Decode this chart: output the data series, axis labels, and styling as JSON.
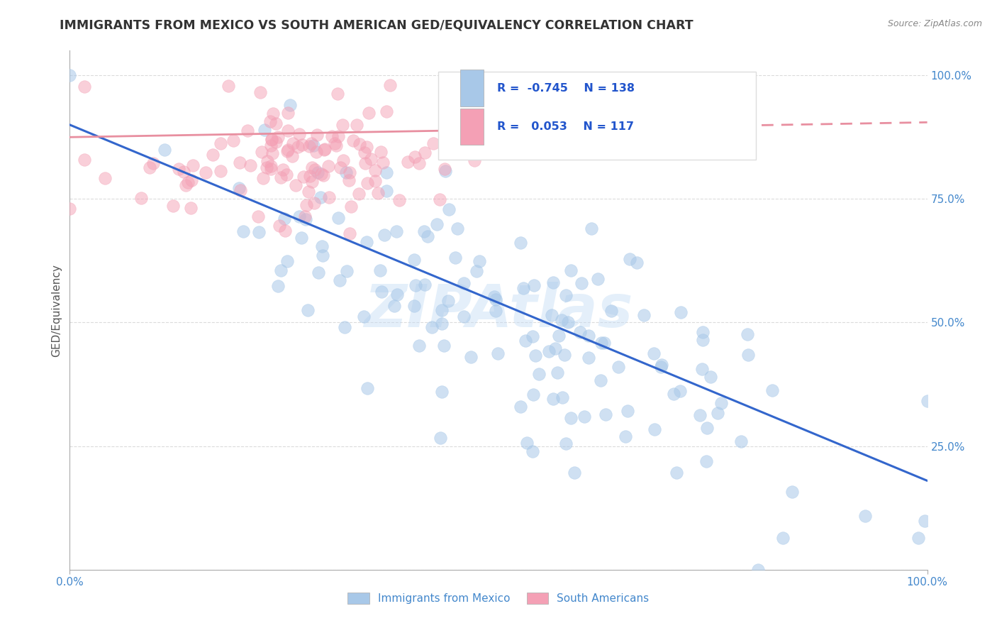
{
  "title": "IMMIGRANTS FROM MEXICO VS SOUTH AMERICAN GED/EQUIVALENCY CORRELATION CHART",
  "source": "Source: ZipAtlas.com",
  "ylabel": "GED/Equivalency",
  "xlim": [
    0.0,
    1.0
  ],
  "ylim": [
    0.0,
    1.05
  ],
  "r_mexico": -0.745,
  "n_mexico": 138,
  "r_south": 0.053,
  "n_south": 117,
  "color_mexico": "#a8c8e8",
  "color_south": "#f4a0b5",
  "trendline_mexico": "#3366cc",
  "trendline_south": "#e88fa0",
  "legend_label_mexico": "Immigrants from Mexico",
  "legend_label_south": "South Americans",
  "watermark": "ZIPAtlas",
  "background_color": "#ffffff",
  "title_color": "#333333",
  "axis_color": "#aaaaaa",
  "tick_label_color": "#4488cc",
  "ylabel_color": "#555555",
  "source_color": "#888888",
  "legend_text_color": "#2255cc",
  "trendline_mex_slope": -0.72,
  "trendline_mex_intercept": 0.9,
  "trendline_sou_slope": 0.03,
  "trendline_sou_intercept": 0.875
}
